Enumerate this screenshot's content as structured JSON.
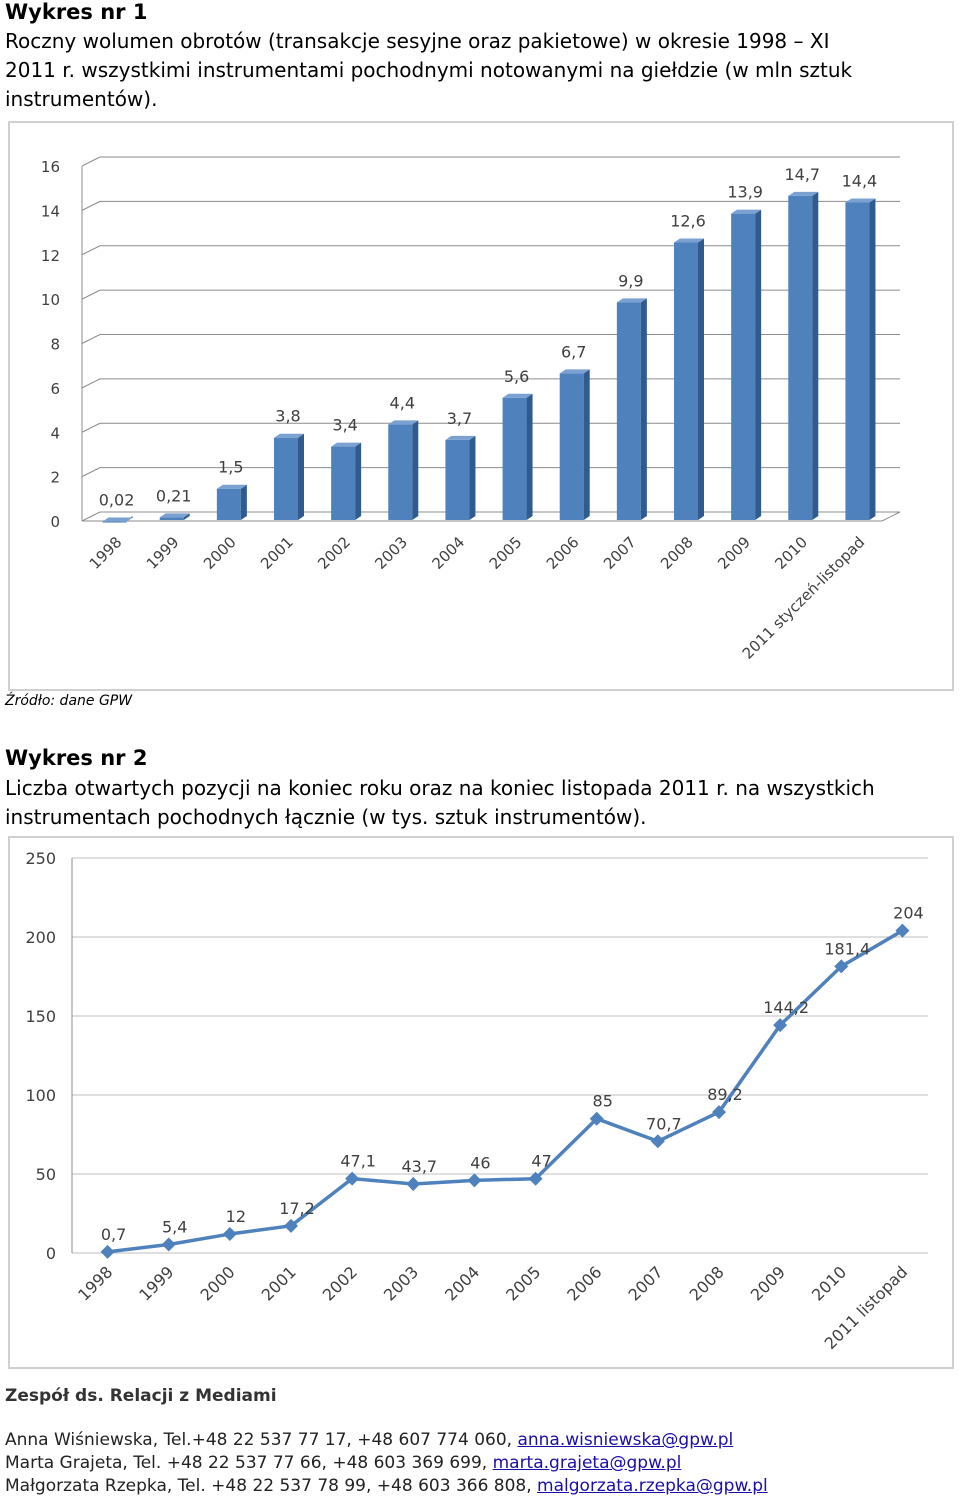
{
  "section1": {
    "heading": "Wykres nr 1",
    "lines": [
      "Roczny wolumen obrotów (transakcje sesyjne oraz pakietowe) w okresie 1998 – XI",
      "2011 r. wszystkimi instrumentami pochodnymi notowanymi na giełdzie (w mln sztuk",
      "instrumentów)."
    ],
    "source": "Źródło: dane GPW"
  },
  "section2": {
    "heading": "Wykres nr 2",
    "lines": [
      "Liczba otwartych pozycji na koniec roku oraz na koniec listopada 2011 r. na wszystkich",
      "instrumentach pochodnych łącznie (w tys. sztuk instrumentów)."
    ]
  },
  "footer": {
    "title": "Zespół ds. Relacji z Mediami",
    "contacts": [
      {
        "text": "Anna Wiśniewska,  Tel.+48 22 537 77 17, +48 607 774 060, ",
        "email": "anna.wisniewska@gpw.pl"
      },
      {
        "text": "Marta Grajeta, Tel. +48 22 537 77 66, +48 603 369 699, ",
        "email": "marta.grajeta@gpw.pl"
      },
      {
        "text": "Małgorzata Rzepka, Tel. +48 22 537 78 99, +48 603 366 808, ",
        "email": "malgorzata.rzepka@gpw.pl"
      }
    ]
  },
  "chart_data": [
    {
      "type": "bar",
      "categories": [
        "1998",
        "1999",
        "2000",
        "2001",
        "2002",
        "2003",
        "2004",
        "2005",
        "2006",
        "2007",
        "2008",
        "2009",
        "2010",
        "2011 styczeń-listopad"
      ],
      "values": [
        0.02,
        0.21,
        1.5,
        3.8,
        3.4,
        4.4,
        3.7,
        5.6,
        6.7,
        9.9,
        12.6,
        13.9,
        14.7,
        14.4
      ],
      "labels": [
        "0,02",
        "0,21",
        "1,5",
        "3,8",
        "3,4",
        "4,4",
        "3,7",
        "5,6",
        "6,7",
        "9,9",
        "12,6",
        "13,9",
        "14,7",
        "14,4"
      ],
      "yticks": [
        "0",
        "2",
        "4",
        "6",
        "8",
        "10",
        "12",
        "14",
        "16"
      ],
      "ylim": [
        0,
        16
      ],
      "grid": true,
      "style": "3d",
      "color": "#4f81bd"
    },
    {
      "type": "line",
      "categories": [
        "1998",
        "1999",
        "2000",
        "2001",
        "2002",
        "2003",
        "2004",
        "2005",
        "2006",
        "2007",
        "2008",
        "2009",
        "2010",
        "2011 listopad"
      ],
      "values": [
        0.7,
        5.4,
        12,
        17.2,
        47.1,
        43.7,
        46,
        47,
        85,
        70.7,
        89.2,
        144.2,
        181.4,
        204
      ],
      "labels": [
        "0,7",
        "5,4",
        "12",
        "17,2",
        "47,1",
        "43,7",
        "46",
        "47",
        "85",
        "70,7",
        "89,2",
        "144,2",
        "181,4",
        "204"
      ],
      "yticks": [
        "0",
        "50",
        "100",
        "150",
        "200",
        "250"
      ],
      "ylim": [
        0,
        250
      ],
      "grid": true,
      "marker": "diamond",
      "color": "#4f81bd"
    }
  ]
}
